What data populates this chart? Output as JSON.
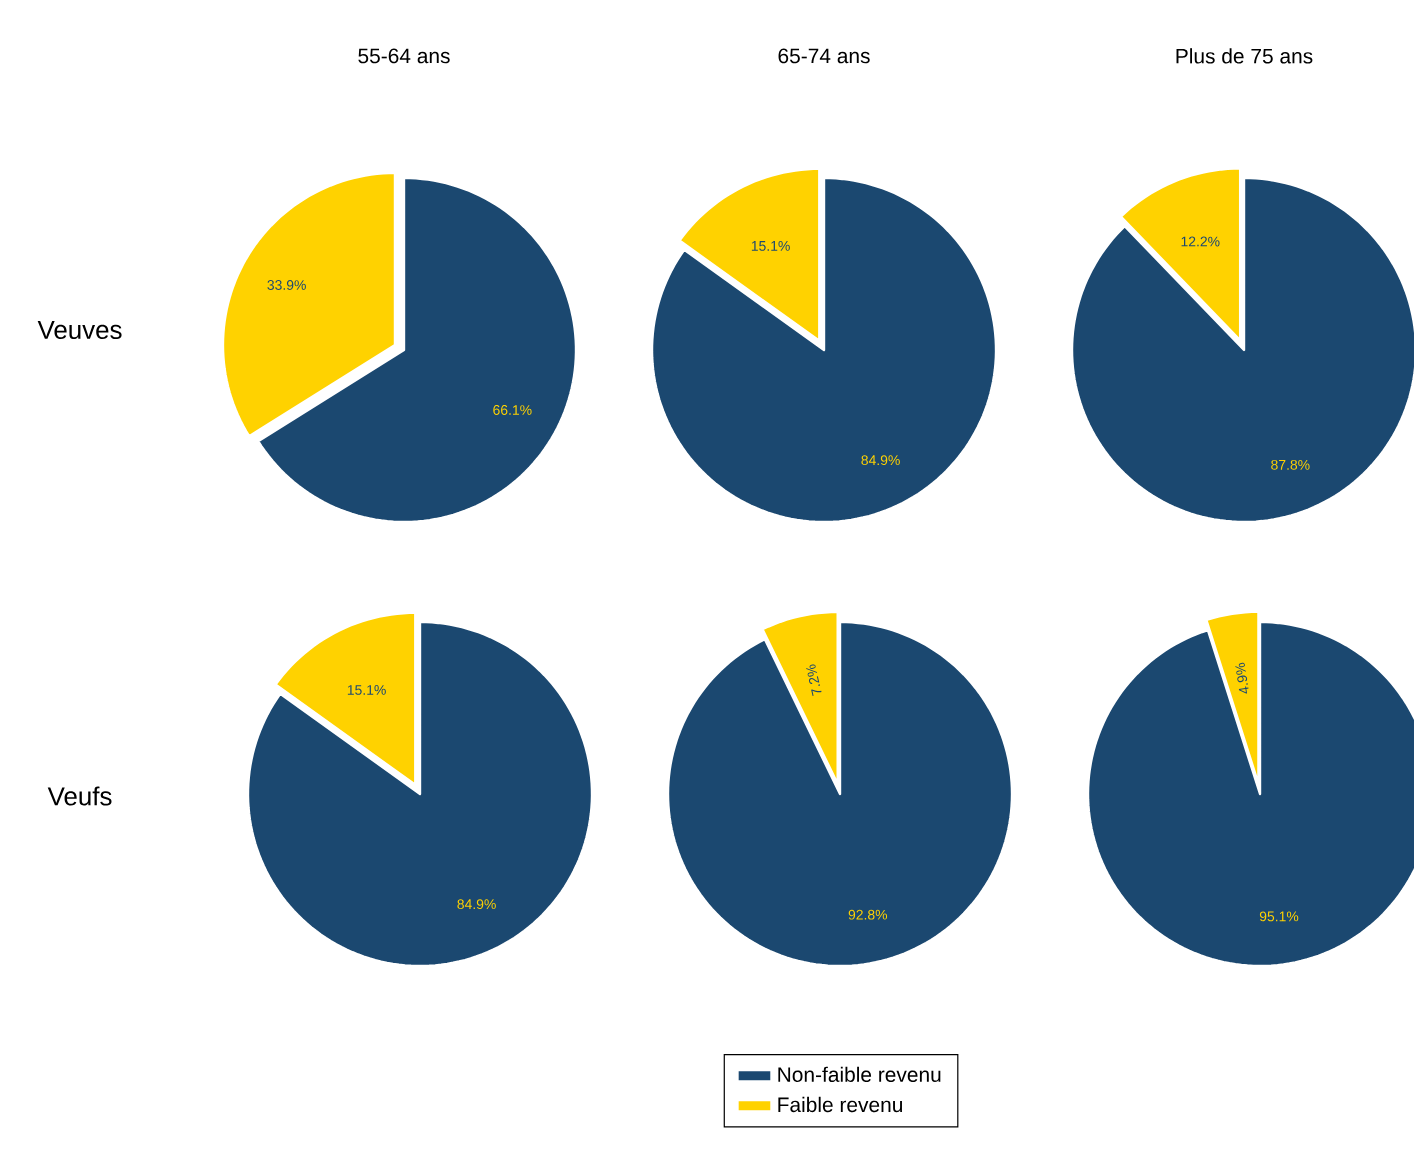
{
  "chart_data": [
    {
      "type": "pie",
      "title": "55-64 ans",
      "ylabel": "Veuves",
      "categories": [
        null,
        null
      ],
      "values": [
        66.1,
        33.9
      ],
      "value_labels": [
        "66.1%",
        "33.9%"
      ],
      "colors": [
        "#1b4870",
        "#ffd200"
      ]
    },
    {
      "type": "pie",
      "title": "65-74 ans",
      "categories": [
        null,
        null
      ],
      "values": [
        84.9,
        15.1
      ],
      "value_labels": [
        "84.9%",
        "15.1%"
      ],
      "colors": [
        "#1b4870",
        "#ffd200"
      ]
    },
    {
      "type": "pie",
      "title": "Plus de 75 ans",
      "categories": [
        null,
        null
      ],
      "values": [
        87.8,
        12.2
      ],
      "value_labels": [
        "87.8%",
        "12.2%"
      ],
      "colors": [
        "#1b4870",
        "#ffd200"
      ]
    },
    {
      "type": "pie",
      "ylabel": "Veufs",
      "categories": [
        null,
        null
      ],
      "values": [
        84.9,
        15.1
      ],
      "value_labels": [
        "84.9%",
        "15.1%"
      ],
      "colors": [
        "#1b4870",
        "#ffd200"
      ]
    },
    {
      "type": "pie",
      "categories": [
        "Non-faible revenu",
        "Faible revenu"
      ],
      "values": [
        92.8,
        7.2
      ],
      "value_labels": [
        "92.8%",
        "7.2%"
      ],
      "colors": [
        "#1b4870",
        "#ffd200"
      ],
      "legend": "bottom"
    },
    {
      "type": "pie",
      "categories": [
        null,
        null
      ],
      "values": [
        95.1,
        4.9
      ],
      "value_labels": [
        "95.1%",
        "4.9%"
      ],
      "colors": [
        "#1b4870",
        "#ffd200"
      ]
    }
  ]
}
